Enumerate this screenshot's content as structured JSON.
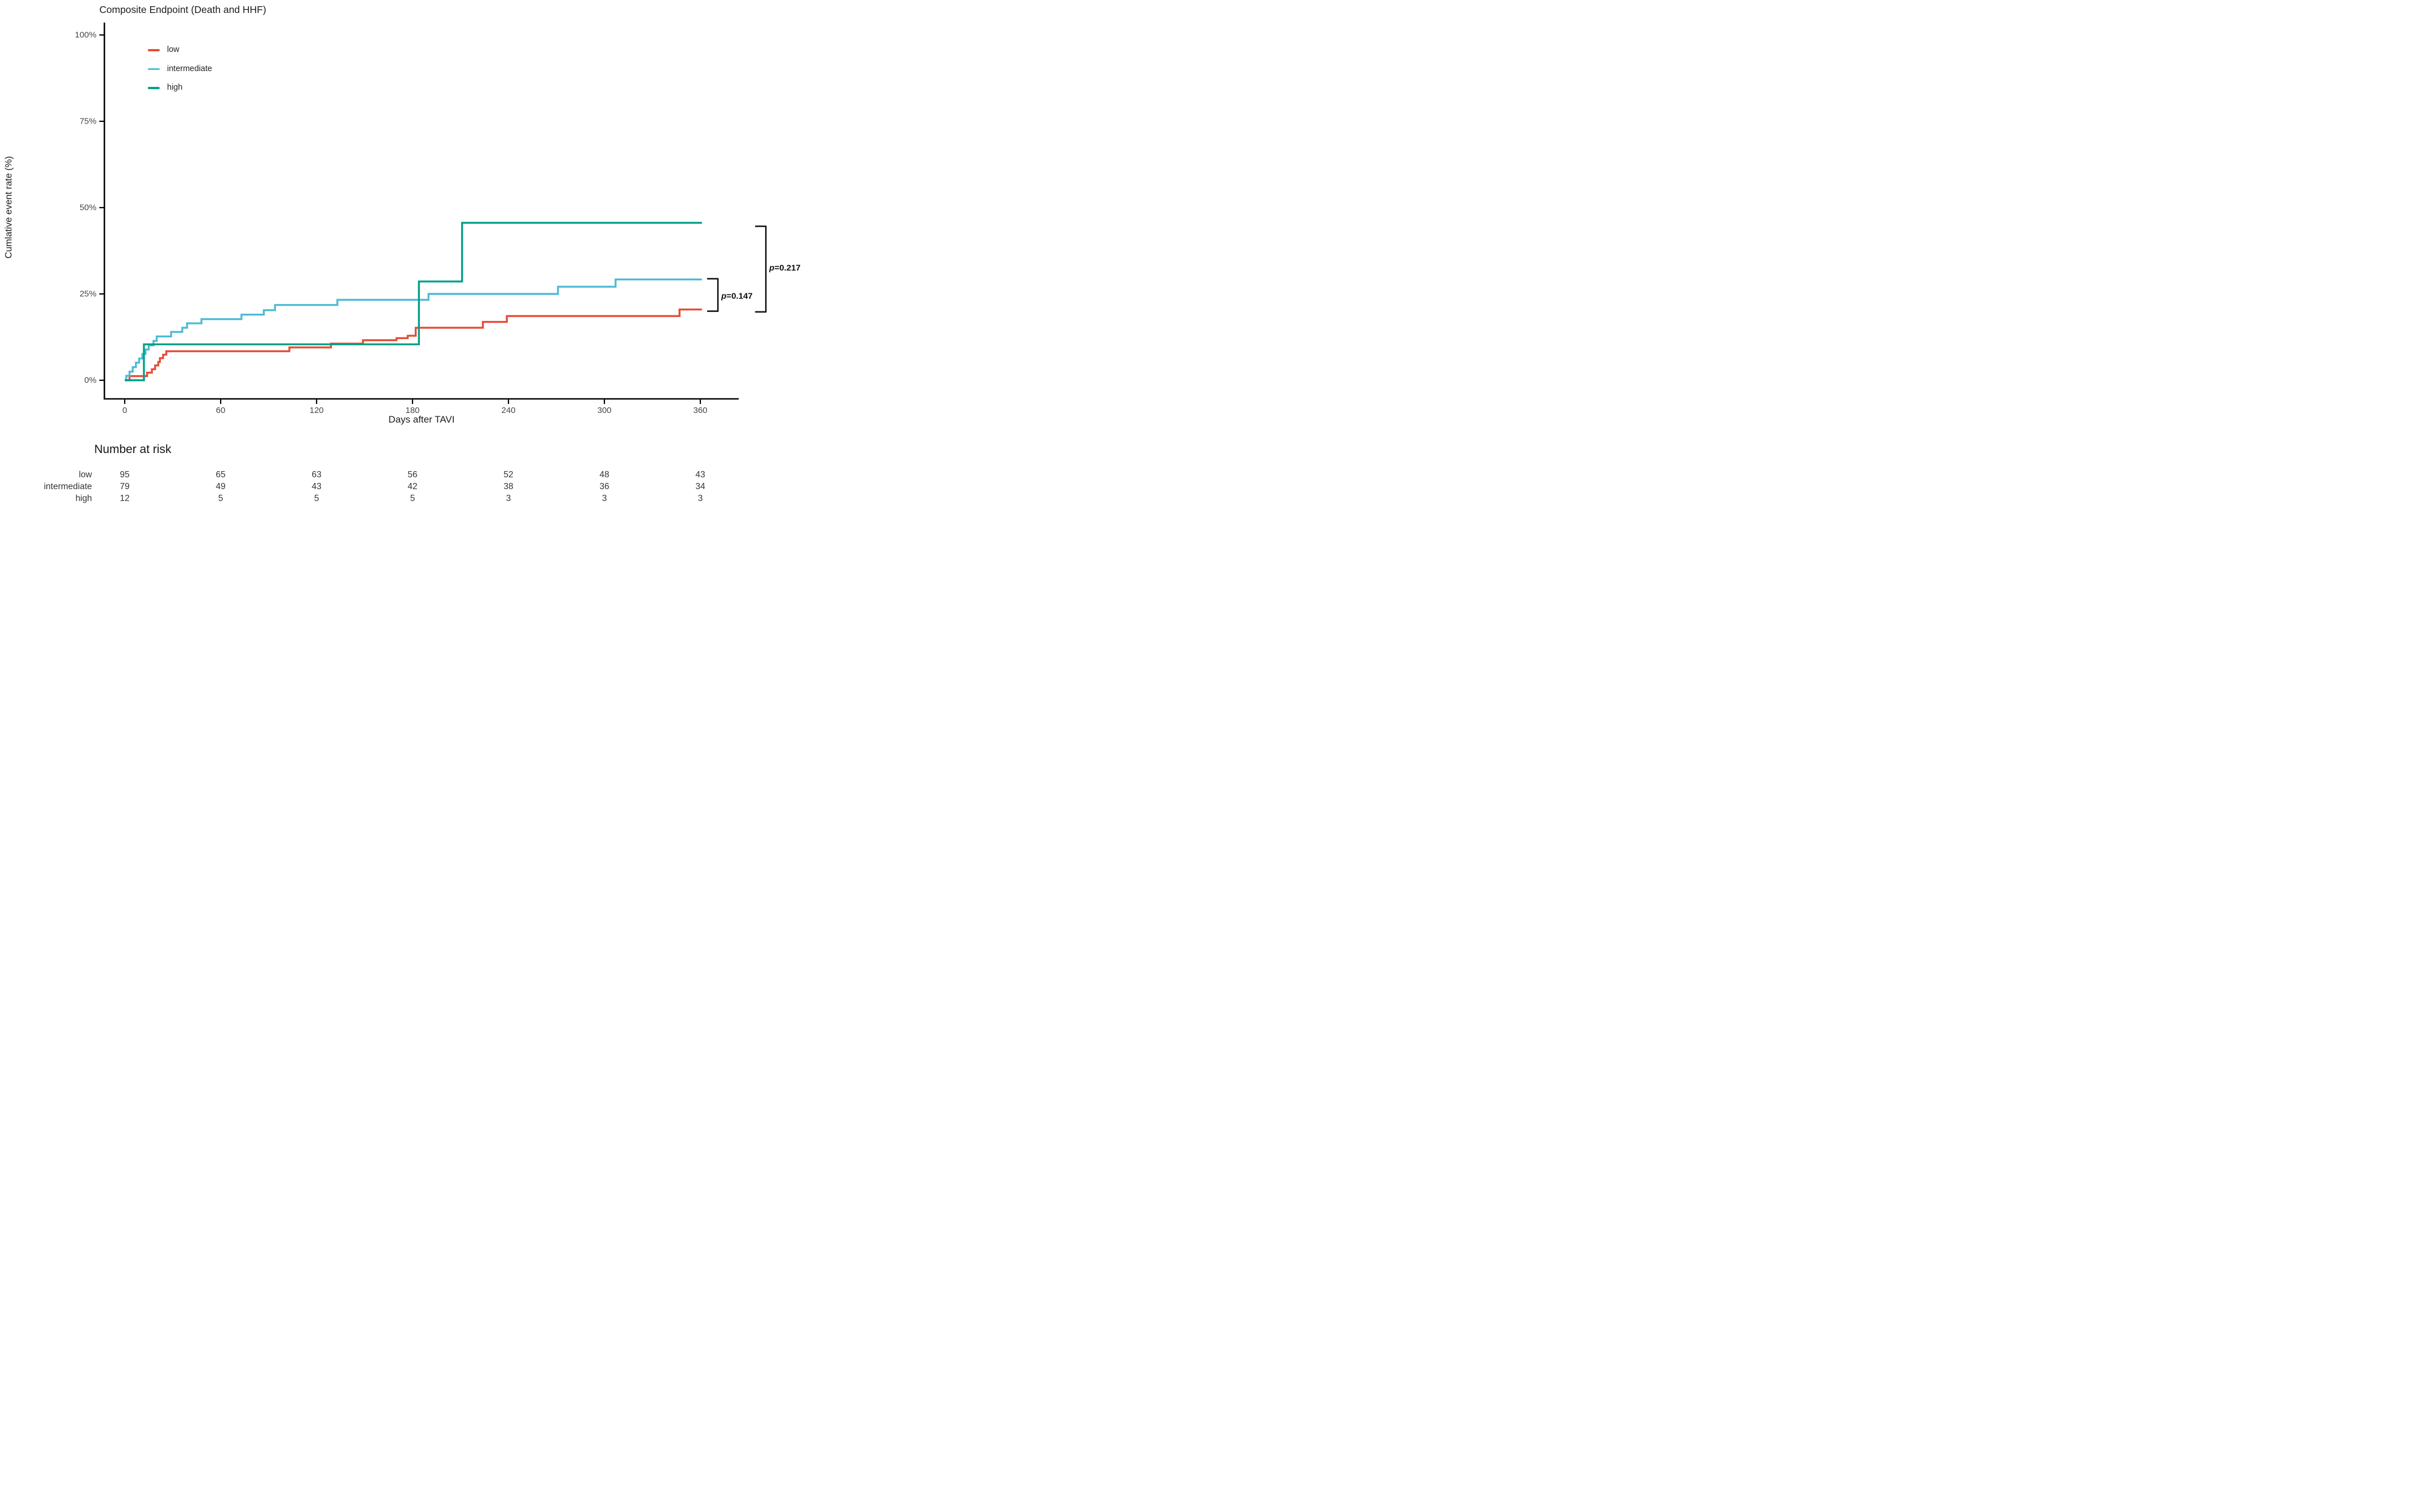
{
  "title": "Composite Endpoint (Death and HHF)",
  "axes": {
    "y_label": "Cumlative event rate (%)",
    "x_label": "Days after TAVI",
    "y_ticks": [
      {
        "value": 0,
        "label": "0%"
      },
      {
        "value": 25,
        "label": "25%"
      },
      {
        "value": 50,
        "label": "50%"
      },
      {
        "value": 75,
        "label": "75%"
      },
      {
        "value": 100,
        "label": "100%"
      }
    ],
    "x_ticks": [
      0,
      60,
      120,
      180,
      240,
      300,
      360
    ]
  },
  "colors": {
    "low": "#E64B35",
    "intermediate": "#4DBBD5",
    "high": "#00A087",
    "axis": "#000000",
    "bracket": "#111111"
  },
  "legend": [
    {
      "label": "low",
      "color": "#E64B35"
    },
    {
      "label": "intermediate",
      "color": "#4DBBD5"
    },
    {
      "label": "high",
      "color": "#00A087"
    }
  ],
  "chart_data": {
    "type": "line",
    "subtype": "kaplan-meier-step",
    "title": "Composite Endpoint (Death and HHF)",
    "xlabel": "Days after TAVI",
    "ylabel": "Cumlative event rate (%)",
    "xlim": [
      0,
      384
    ],
    "ylim": [
      0,
      100
    ],
    "x_end_day": 361,
    "grid": false,
    "legend_position": "top-left-inside",
    "series": [
      {
        "name": "low",
        "color": "#E64B35",
        "steps": [
          [
            0,
            0
          ],
          [
            3,
            1.2
          ],
          [
            14,
            2.2
          ],
          [
            17,
            3.2
          ],
          [
            19,
            4.3
          ],
          [
            21,
            5.3
          ],
          [
            22,
            6.4
          ],
          [
            24,
            7.4
          ],
          [
            26,
            8.4
          ],
          [
            103,
            9.5
          ],
          [
            129,
            10.6
          ],
          [
            149,
            11.6
          ],
          [
            170,
            12.2
          ],
          [
            177,
            12.9
          ],
          [
            182,
            15.2
          ],
          [
            224,
            16.9
          ],
          [
            239,
            18.6
          ],
          [
            347,
            20.5
          ],
          [
            361,
            20.5
          ]
        ]
      },
      {
        "name": "intermediate",
        "color": "#4DBBD5",
        "steps": [
          [
            0,
            0
          ],
          [
            1,
            1.3
          ],
          [
            3,
            2.5
          ],
          [
            5,
            3.8
          ],
          [
            7,
            5.1
          ],
          [
            9,
            6.3
          ],
          [
            11,
            7.6
          ],
          [
            13,
            8.9
          ],
          [
            15,
            10.1
          ],
          [
            18,
            11.4
          ],
          [
            20,
            12.7
          ],
          [
            29,
            14.0
          ],
          [
            36,
            15.2
          ],
          [
            39,
            16.5
          ],
          [
            48,
            17.7
          ],
          [
            73,
            19.0
          ],
          [
            87,
            20.3
          ],
          [
            94,
            21.8
          ],
          [
            133,
            23.3
          ],
          [
            190,
            25.0
          ],
          [
            271,
            27.1
          ],
          [
            307,
            29.2
          ],
          [
            361,
            29.2
          ]
        ]
      },
      {
        "name": "high",
        "color": "#00A087",
        "steps": [
          [
            0,
            0
          ],
          [
            12,
            10.4
          ],
          [
            184,
            28.6
          ],
          [
            211,
            45.6
          ],
          [
            361,
            45.6
          ]
        ]
      }
    ],
    "pvalues": [
      {
        "label": "p=0.147",
        "compares": [
          "intermediate",
          "low"
        ],
        "x_day": 371,
        "bracket_top_pct": 29.4,
        "bracket_bottom_pct": 20.0,
        "label_pct": 24.3
      },
      {
        "label": "p=0.217",
        "compares": [
          "high",
          "low"
        ],
        "x_day": 401,
        "bracket_top_pct": 44.6,
        "bracket_bottom_pct": 19.8,
        "label_pct": 32.5
      }
    ],
    "number_at_risk": {
      "heading": "Number at risk",
      "times": [
        0,
        60,
        120,
        180,
        240,
        300,
        360
      ],
      "rows": [
        {
          "name": "low",
          "values": [
            95,
            65,
            63,
            56,
            52,
            48,
            43
          ]
        },
        {
          "name": "intermediate",
          "values": [
            79,
            49,
            43,
            42,
            38,
            36,
            34
          ]
        },
        {
          "name": "high",
          "values": [
            12,
            5,
            5,
            5,
            3,
            3,
            3
          ]
        }
      ]
    }
  }
}
